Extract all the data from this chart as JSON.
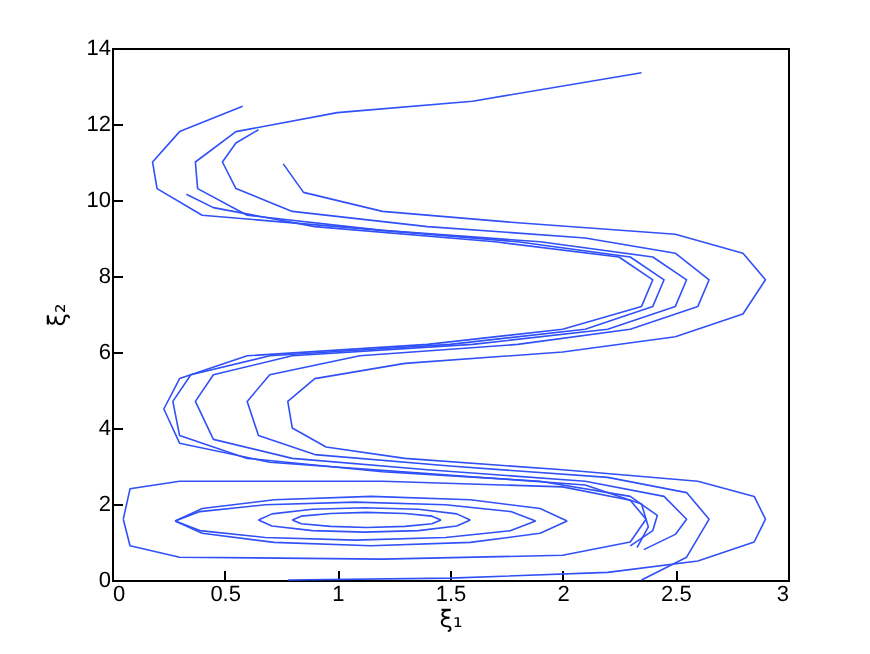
{
  "chart_data": {
    "type": "line",
    "xlabel": "ξ₁",
    "ylabel": "ξ₂",
    "xlim": [
      0,
      3
    ],
    "ylim": [
      0,
      14
    ],
    "xticks": [
      0,
      0.5,
      1,
      1.5,
      2,
      2.5,
      3
    ],
    "yticks": [
      0,
      2,
      4,
      6,
      8,
      10,
      12,
      14
    ],
    "grid": false,
    "legend": false,
    "series": [
      {
        "color": "#3050f8",
        "x": [
          1.46,
          1.42,
          1.3,
          1.13,
          0.97,
          0.84,
          0.8
        ],
        "values": [
          1.58,
          1.68,
          1.75,
          1.78,
          1.75,
          1.68,
          1.58
        ]
      },
      {
        "color": "#3050f8",
        "x": [
          0.8,
          0.84,
          0.97,
          1.13,
          1.3,
          1.42,
          1.46
        ],
        "values": [
          1.58,
          1.48,
          1.41,
          1.38,
          1.41,
          1.48,
          1.58
        ]
      },
      {
        "color": "#3050f8",
        "x": [
          1.59,
          1.53,
          1.36,
          1.12,
          0.89,
          0.71,
          0.65
        ],
        "values": [
          1.58,
          1.74,
          1.86,
          1.9,
          1.86,
          1.74,
          1.58
        ]
      },
      {
        "color": "#3050f8",
        "x": [
          0.65,
          0.71,
          0.89,
          1.12,
          1.36,
          1.53,
          1.59
        ],
        "values": [
          1.58,
          1.42,
          1.3,
          1.26,
          1.3,
          1.42,
          1.58
        ]
      },
      {
        "color": "#3050f8",
        "x": [
          1.88,
          1.77,
          1.48,
          1.08,
          0.68,
          0.39,
          0.28
        ],
        "values": [
          1.55,
          1.8,
          1.98,
          2.05,
          1.98,
          1.8,
          1.55
        ]
      },
      {
        "color": "#3050f8",
        "x": [
          0.28,
          0.39,
          0.68,
          1.08,
          1.48,
          1.77,
          1.88
        ],
        "values": [
          1.55,
          1.3,
          1.12,
          1.05,
          1.12,
          1.3,
          1.55
        ]
      },
      {
        "color": "#3050f8",
        "x": [
          2.02,
          1.9,
          1.59,
          1.15,
          0.72,
          0.4,
          0.28
        ],
        "values": [
          1.55,
          1.88,
          2.11,
          2.2,
          2.11,
          1.88,
          1.55
        ]
      },
      {
        "color": "#3050f8",
        "x": [
          0.28,
          0.4,
          0.72,
          1.15,
          1.59,
          1.9,
          2.02
        ],
        "values": [
          1.55,
          1.23,
          0.99,
          0.9,
          0.99,
          1.23,
          1.55
        ]
      },
      {
        "color": "#3050f8",
        "x": [
          2.37,
          2.3,
          2.0,
          1.2,
          0.3,
          0.08,
          0.05
        ],
        "values": [
          1.6,
          2.1,
          2.45,
          2.6,
          2.6,
          2.4,
          1.6
        ]
      },
      {
        "color": "#3050f8",
        "x": [
          0.05,
          0.08,
          0.3,
          1.2,
          2.0,
          2.3,
          2.37
        ],
        "values": [
          1.6,
          0.9,
          0.6,
          0.55,
          0.65,
          1.0,
          1.6
        ]
      },
      {
        "color": "#3050f8",
        "x": [
          0.78,
          1.5,
          2.2,
          2.6,
          2.85,
          2.9,
          2.85,
          2.6,
          2.0,
          1.3,
          0.95,
          0.8,
          0.78,
          0.9,
          1.3,
          2.0,
          2.5,
          2.8,
          2.9,
          2.8,
          2.5,
          1.8,
          1.2,
          0.85,
          0.76
        ],
        "values": [
          0,
          0.05,
          0.2,
          0.5,
          1.0,
          1.6,
          2.2,
          2.6,
          2.9,
          3.2,
          3.5,
          4.0,
          4.7,
          5.3,
          5.7,
          6.0,
          6.4,
          7.0,
          7.9,
          8.6,
          9.1,
          9.4,
          9.7,
          10.2,
          10.95
        ]
      },
      {
        "color": "#3050f8",
        "x": [
          2.35,
          2.55,
          2.65,
          2.55,
          2.2,
          1.5,
          0.9,
          0.65,
          0.6,
          0.7,
          1.1,
          1.8,
          2.3,
          2.6,
          2.65,
          2.5,
          2.1,
          1.4,
          0.8,
          0.55,
          0.49,
          0.55,
          0.65
        ],
        "values": [
          0,
          0.6,
          1.6,
          2.3,
          2.7,
          3.0,
          3.3,
          3.8,
          4.7,
          5.4,
          5.9,
          6.2,
          6.6,
          7.2,
          7.9,
          8.6,
          9.0,
          9.3,
          9.7,
          10.3,
          11.0,
          11.5,
          11.85
        ]
      },
      {
        "color": "#3050f8",
        "x": [
          2.36,
          2.5,
          2.55,
          2.45,
          2.1,
          1.4,
          0.8,
          0.45,
          0.37,
          0.45,
          0.8,
          1.6,
          2.2,
          2.5,
          2.55,
          2.4,
          1.9,
          1.2,
          0.6,
          0.38,
          0.37,
          0.55,
          1.0,
          1.6,
          2.35
        ],
        "values": [
          0.8,
          1.2,
          1.6,
          2.2,
          2.6,
          2.9,
          3.2,
          3.7,
          4.7,
          5.4,
          5.9,
          6.2,
          6.6,
          7.2,
          7.9,
          8.5,
          8.9,
          9.2,
          9.6,
          10.3,
          11.0,
          11.8,
          12.3,
          12.6,
          13.35
        ]
      },
      {
        "color": "#3050f8",
        "x": [
          2.3,
          2.4,
          2.42,
          2.3,
          1.9,
          1.2,
          0.6,
          0.3,
          0.27,
          0.35,
          0.7,
          1.5,
          2.1,
          2.4,
          2.45,
          2.3,
          1.8,
          1.0,
          0.4,
          0.2,
          0.18,
          0.3,
          0.58
        ],
        "values": [
          0.9,
          1.3,
          1.7,
          2.2,
          2.6,
          2.85,
          3.2,
          3.8,
          4.7,
          5.4,
          5.9,
          6.2,
          6.6,
          7.2,
          7.9,
          8.5,
          8.9,
          9.3,
          9.6,
          10.3,
          11.0,
          11.8,
          12.47
        ]
      },
      {
        "color": "#3050f8",
        "x": [
          2.33,
          2.38,
          2.35,
          2.1,
          1.4,
          0.7,
          0.3,
          0.23,
          0.3,
          0.6,
          1.4,
          2.0,
          2.35,
          2.4,
          2.25,
          1.7,
          0.9,
          0.45,
          0.33
        ],
        "values": [
          0.85,
          1.4,
          2.0,
          2.5,
          2.8,
          3.1,
          3.6,
          4.5,
          5.3,
          5.9,
          6.2,
          6.6,
          7.2,
          7.9,
          8.5,
          8.9,
          9.3,
          9.8,
          10.15
        ]
      }
    ]
  }
}
